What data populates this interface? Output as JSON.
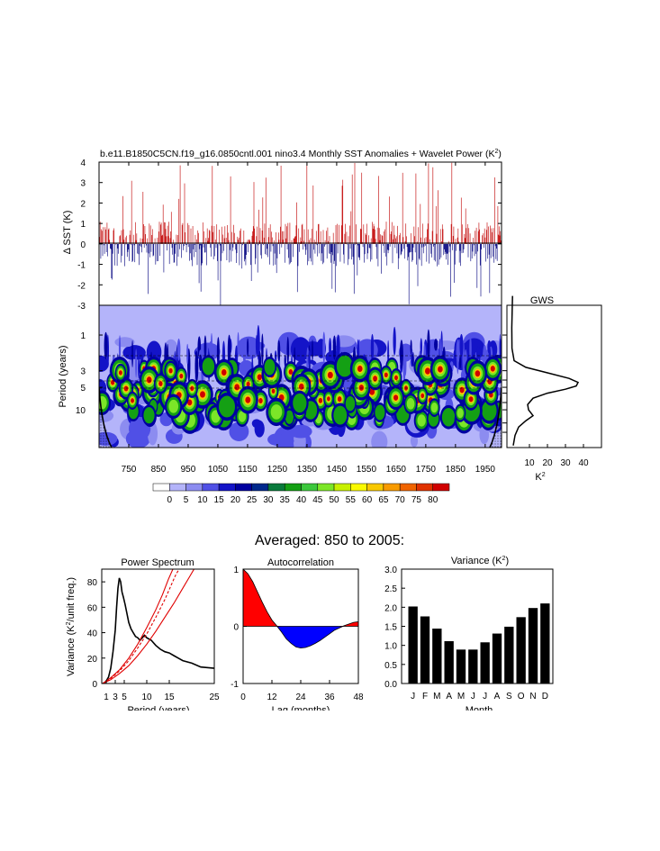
{
  "page": {
    "main_title": "b.e11.B1850C5CN.f19_g16.0850cntl.001 nino3.4 Monthly SST Anomalies + Wavelet Power (K",
    "main_title_sup": "2",
    "main_title_tail": ")",
    "averaged_title": "Averaged: 850 to 2005:"
  },
  "colors": {
    "positive_fill": "#c81e1e",
    "negative_fill": "#1c1c8c",
    "spectrum_line": "#000000",
    "red_noise": "#e00000",
    "autocorr_positive": "#ff0000",
    "autocorr_negative": "#0000ff",
    "bar_fill": "#000000"
  },
  "chart_data": [
    {
      "id": "sst",
      "type": "line",
      "ylabel": "Δ SST (K)",
      "ylim": [
        -3,
        4
      ],
      "yticks": [
        4,
        3,
        2,
        1,
        0,
        -1,
        -2,
        -3
      ],
      "x_range": [
        650,
        2005
      ],
      "note_fill": "values above 0 filled red, below 0 filled blue"
    },
    {
      "id": "wavelet",
      "type": "heatmap",
      "ylabel": "Period (years)",
      "yticks": [
        1,
        3,
        5,
        10
      ],
      "xticks": [
        750,
        850,
        950,
        1050,
        1150,
        1250,
        1350,
        1450,
        1550,
        1650,
        1750,
        1850,
        1950
      ],
      "x_range": [
        650,
        2005
      ],
      "period_range": [
        0.4,
        32
      ],
      "dominant_period_band": [
        3,
        7
      ]
    },
    {
      "id": "colorbar",
      "type": "table",
      "labels": [
        "0",
        "5",
        "10",
        "15",
        "20",
        "25",
        "30",
        "35",
        "40",
        "45",
        "50",
        "55",
        "60",
        "65",
        "70",
        "75",
        "80"
      ],
      "colors": [
        "#ffffff",
        "#b4b4fa",
        "#8c8cf0",
        "#5050e6",
        "#1414c8",
        "#0000a0",
        "#00288c",
        "#0a7a3c",
        "#14a014",
        "#3cc83c",
        "#7ce628",
        "#c8f000",
        "#fafa00",
        "#f8c800",
        "#f89b00",
        "#f06400",
        "#e03200",
        "#d00000"
      ]
    },
    {
      "id": "gws",
      "type": "line",
      "title": "GWS",
      "xlabel": "K",
      "xlabel_sup": "2",
      "xticks": [
        10,
        20,
        30,
        40
      ],
      "xlim": [
        0,
        50
      ],
      "points": [
        [
          0.3,
          0.6
        ],
        [
          0.8,
          0.2
        ],
        [
          1.5,
          0.3
        ],
        [
          2.2,
          1.5
        ],
        [
          2.7,
          8
        ],
        [
          3.2,
          20
        ],
        [
          3.8,
          32
        ],
        [
          4.3,
          37
        ],
        [
          4.8,
          36
        ],
        [
          5.3,
          30
        ],
        [
          6,
          20
        ],
        [
          7,
          12
        ],
        [
          8.5,
          9
        ],
        [
          10,
          9.5
        ],
        [
          12,
          12
        ],
        [
          14,
          8
        ],
        [
          17,
          4
        ],
        [
          22,
          2
        ],
        [
          30,
          1
        ]
      ]
    },
    {
      "id": "power_spectrum",
      "type": "line",
      "title": "Power Spectrum",
      "xlabel": "Period (years)",
      "ylabel": "Variance (K",
      "ylabel_sup": "2",
      "ylabel_tail": "/unit freq.)",
      "xticks": [
        1,
        3,
        5,
        10,
        15,
        25
      ],
      "yticks": [
        0,
        20,
        40,
        60,
        80
      ],
      "xlim": [
        0,
        25
      ],
      "ylim": [
        0,
        90
      ],
      "series": [
        {
          "values": [
            [
              0.5,
              0
            ],
            [
              1,
              2
            ],
            [
              1.5,
              5
            ],
            [
              2,
              12
            ],
            [
              2.5,
              25
            ],
            [
              3,
              42
            ],
            [
              3.3,
              60
            ],
            [
              3.6,
              75
            ],
            [
              3.9,
              83
            ],
            [
              4.2,
              80
            ],
            [
              4.5,
              72
            ],
            [
              4.8,
              68
            ],
            [
              5.2,
              62
            ],
            [
              5.6,
              55
            ],
            [
              6,
              48
            ],
            [
              6.5,
              43
            ],
            [
              7,
              40
            ],
            [
              7.5,
              37
            ],
            [
              8,
              36
            ],
            [
              8.5,
              34
            ],
            [
              9,
              36
            ],
            [
              9.5,
              38
            ],
            [
              10,
              36
            ],
            [
              11,
              34
            ],
            [
              12,
              30
            ],
            [
              13,
              27
            ],
            [
              14,
              25
            ],
            [
              15,
              24
            ],
            [
              16,
              22
            ],
            [
              17,
              20
            ],
            [
              18,
              18
            ],
            [
              20,
              16
            ],
            [
              22,
              13
            ],
            [
              25,
              12
            ]
          ]
        },
        {
          "values": [
            [
              0.2,
              0
            ],
            [
              2,
              3
            ],
            [
              4,
              8
            ],
            [
              6,
              14
            ],
            [
              8,
              22
            ],
            [
              10,
              31
            ],
            [
              12,
              41
            ],
            [
              14,
              52
            ],
            [
              16,
              63
            ],
            [
              18,
              75
            ],
            [
              19.5,
              84
            ],
            [
              20.5,
              90
            ]
          ]
        },
        {
          "values": [
            [
              0.2,
              0
            ],
            [
              2,
              4
            ],
            [
              4,
              10
            ],
            [
              6,
              18
            ],
            [
              8,
              28
            ],
            [
              10,
              39
            ],
            [
              12,
              52
            ],
            [
              14,
              66
            ],
            [
              15.5,
              78
            ],
            [
              16.5,
              86
            ],
            [
              17.2,
              90
            ]
          ]
        },
        {
          "values": [
            [
              0.2,
              0
            ],
            [
              2,
              4.5
            ],
            [
              4,
              11
            ],
            [
              6,
              20
            ],
            [
              8,
              31
            ],
            [
              10,
              44
            ],
            [
              12,
              58
            ],
            [
              13.5,
              70
            ],
            [
              14.8,
              82
            ],
            [
              15.8,
              90
            ]
          ]
        }
      ]
    },
    {
      "id": "autocorrelation",
      "type": "area",
      "title": "Autocorrelation",
      "xlabel": "Lag (months)",
      "xticks": [
        0,
        12,
        24,
        36,
        48
      ],
      "yticks": [
        -1,
        0,
        1
      ],
      "xlim": [
        0,
        48
      ],
      "ylim": [
        -1,
        1
      ],
      "values": [
        [
          0,
          1
        ],
        [
          2,
          0.92
        ],
        [
          4,
          0.78
        ],
        [
          6,
          0.6
        ],
        [
          8,
          0.42
        ],
        [
          10,
          0.25
        ],
        [
          12,
          0.11
        ],
        [
          14,
          0.01
        ],
        [
          16,
          -0.1
        ],
        [
          18,
          -0.22
        ],
        [
          20,
          -0.3
        ],
        [
          22,
          -0.36
        ],
        [
          24,
          -0.38
        ],
        [
          26,
          -0.37
        ],
        [
          28,
          -0.34
        ],
        [
          30,
          -0.3
        ],
        [
          32,
          -0.25
        ],
        [
          34,
          -0.19
        ],
        [
          36,
          -0.13
        ],
        [
          38,
          -0.07
        ],
        [
          40,
          -0.03
        ],
        [
          42,
          0.01
        ],
        [
          44,
          0.04
        ],
        [
          46,
          0.07
        ],
        [
          48,
          0.08
        ]
      ]
    },
    {
      "id": "variance",
      "type": "bar",
      "title": "Variance (K",
      "title_sup": "2",
      "title_tail": ")",
      "xlabel": "Month",
      "categories": [
        "J",
        "F",
        "M",
        "A",
        "M",
        "J",
        "J",
        "A",
        "S",
        "O",
        "N",
        "D"
      ],
      "values": [
        2.02,
        1.76,
        1.44,
        1.11,
        0.89,
        0.89,
        1.08,
        1.31,
        1.49,
        1.74,
        1.98,
        2.1
      ],
      "yticks": [
        0.0,
        0.5,
        1.0,
        1.5,
        2.0,
        2.5,
        3.0
      ],
      "ylim": [
        0,
        3
      ]
    }
  ]
}
